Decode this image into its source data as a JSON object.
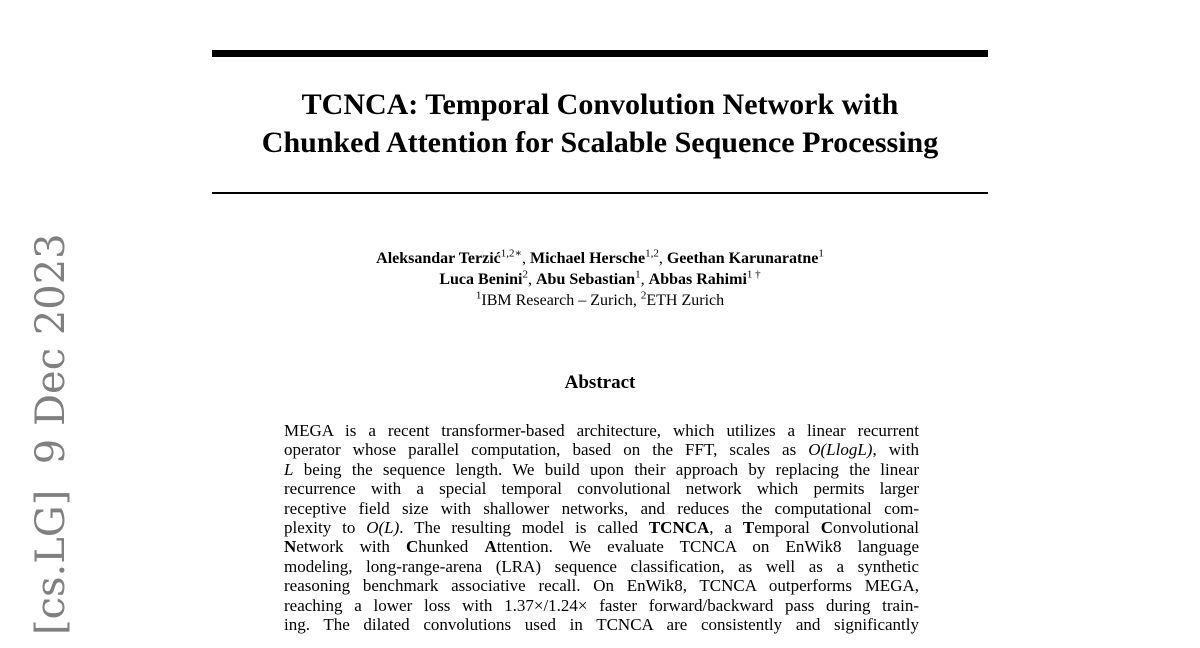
{
  "arxiv_stamp": "[cs.LG]  9 Dec 2023",
  "title_lines": [
    "TCNCA: Temporal Convolution Network with",
    "Chunked Attention for Scalable Sequence Processing"
  ],
  "authors": {
    "line1": [
      {
        "name": "Aleksandar Terzić",
        "sup": "1,2∗"
      },
      {
        "sep": ", "
      },
      {
        "name": "Michael Hersche",
        "sup": "1,2"
      },
      {
        "sep": ", "
      },
      {
        "name": "Geethan Karunaratne",
        "sup": "1"
      }
    ],
    "line2": [
      {
        "name": "Luca Benini",
        "sup": "2"
      },
      {
        "sep": ", "
      },
      {
        "name": "Abu Sebastian",
        "sup": "1"
      },
      {
        "sep": ", "
      },
      {
        "name": "Abbas Rahimi",
        "sup": "1 †"
      }
    ],
    "affiliations": [
      {
        "sup": "1",
        "text": "IBM Research – Zurich, "
      },
      {
        "sup": "2",
        "text": "ETH Zurich"
      }
    ]
  },
  "abstract_heading": "Abstract",
  "abstract_lines": [
    [
      {
        "t": "MEGA is a recent transformer-based architecture, which utilizes a linear recurrent"
      }
    ],
    [
      {
        "t": "operator whose parallel computation, based on the FFT, scales as "
      },
      {
        "t": "O(LlogL)",
        "s": "i"
      },
      {
        "t": ", with"
      }
    ],
    [
      {
        "t": "L",
        "s": "i"
      },
      {
        "t": " being the sequence length. We build upon their approach by replacing the linear"
      }
    ],
    [
      {
        "t": "recurrence with a special temporal convolutional network which permits larger"
      }
    ],
    [
      {
        "t": "receptive field size with shallower networks, and reduces the computational com-"
      }
    ],
    [
      {
        "t": "plexity to "
      },
      {
        "t": "O(L)",
        "s": "i"
      },
      {
        "t": ". The resulting model is called "
      },
      {
        "t": "TCNCA",
        "s": "b"
      },
      {
        "t": ", a "
      },
      {
        "t": "T",
        "s": "b"
      },
      {
        "t": "emporal "
      },
      {
        "t": "C",
        "s": "b"
      },
      {
        "t": "onvolutional"
      }
    ],
    [
      {
        "t": "N",
        "s": "b"
      },
      {
        "t": "etwork with "
      },
      {
        "t": "C",
        "s": "b"
      },
      {
        "t": "hunked "
      },
      {
        "t": "A",
        "s": "b"
      },
      {
        "t": "ttention.  We evaluate TCNCA on EnWik8 language"
      }
    ],
    [
      {
        "t": "modeling, long-range-arena (LRA) sequence classification, as well as a synthetic"
      }
    ],
    [
      {
        "t": "reasoning benchmark associative recall. On EnWik8, TCNCA outperforms MEGA,"
      }
    ],
    [
      {
        "t": "reaching a lower loss with 1.37×/1.24× faster forward/backward pass during train-"
      }
    ],
    [
      {
        "t": "ing. The dilated convolutions used in TCNCA are consistently and significantly"
      }
    ]
  ]
}
